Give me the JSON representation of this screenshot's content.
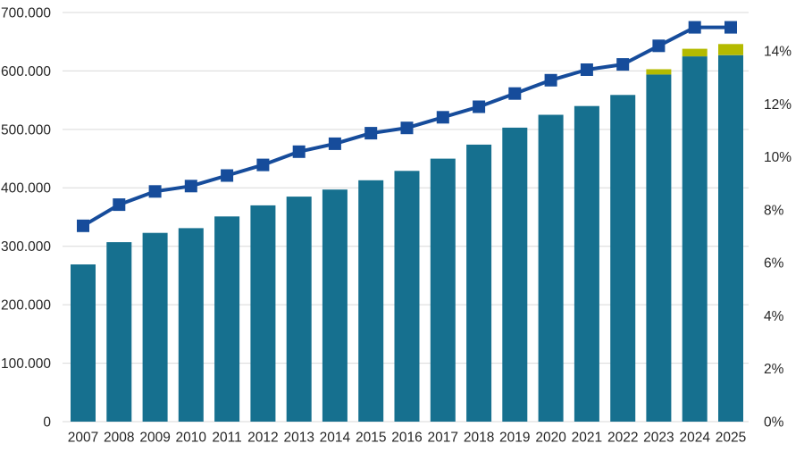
{
  "page": {
    "background": "#ffffff",
    "text_color": "#262626",
    "gridline_color": "#d9d9d9"
  },
  "chart_data": {
    "type": "combo",
    "title": "",
    "legend": "none",
    "grid": "horizontal",
    "categories": [
      "2007",
      "2008",
      "2009",
      "2010",
      "2011",
      "2012",
      "2013",
      "2014",
      "2015",
      "2016",
      "2017",
      "2018",
      "2019",
      "2020",
      "2021",
      "2022",
      "2023",
      "2024",
      "2025"
    ],
    "series": [
      {
        "name": "bars-main",
        "type": "bar",
        "axis": "left",
        "color": "#16708f",
        "values": [
          269000,
          307000,
          323000,
          331000,
          351000,
          370000,
          385000,
          397000,
          413000,
          429000,
          450000,
          474000,
          503000,
          525000,
          540000,
          559000,
          594000,
          625000,
          627000
        ]
      },
      {
        "name": "bars-top-segment",
        "type": "bar",
        "axis": "left",
        "stacked_on": "bars-main",
        "color": "#b4ba00",
        "values": [
          0,
          0,
          0,
          0,
          0,
          0,
          0,
          0,
          0,
          0,
          0,
          0,
          0,
          0,
          0,
          0,
          9000,
          13000,
          19000
        ]
      },
      {
        "name": "share-line",
        "type": "line",
        "axis": "right",
        "color": "#164c9b",
        "marker": "square",
        "values": [
          7.4,
          8.2,
          8.7,
          8.9,
          9.3,
          9.7,
          10.2,
          10.5,
          10.9,
          11.1,
          11.5,
          11.9,
          12.4,
          12.9,
          13.3,
          13.5,
          14.2,
          14.9,
          14.9
        ]
      }
    ],
    "left_axis": {
      "min": 0,
      "max": 700000,
      "ticks": [
        {
          "value": 0,
          "label": "0"
        },
        {
          "value": 100000,
          "label": "100.000"
        },
        {
          "value": 200000,
          "label": "200.000"
        },
        {
          "value": 300000,
          "label": "300.000"
        },
        {
          "value": 400000,
          "label": "400.000"
        },
        {
          "value": 500000,
          "label": "500.000"
        },
        {
          "value": 600000,
          "label": "600.000"
        },
        {
          "value": 700000,
          "label": "700.000"
        }
      ]
    },
    "right_axis": {
      "min": 0,
      "max": 15.46,
      "ticks": [
        {
          "value": 0,
          "label": "0%"
        },
        {
          "value": 2,
          "label": "2%"
        },
        {
          "value": 4,
          "label": "4%"
        },
        {
          "value": 6,
          "label": "6%"
        },
        {
          "value": 8,
          "label": "8%"
        },
        {
          "value": 10,
          "label": "10%"
        },
        {
          "value": 12,
          "label": "12%"
        },
        {
          "value": 14,
          "label": "14%"
        }
      ]
    }
  }
}
